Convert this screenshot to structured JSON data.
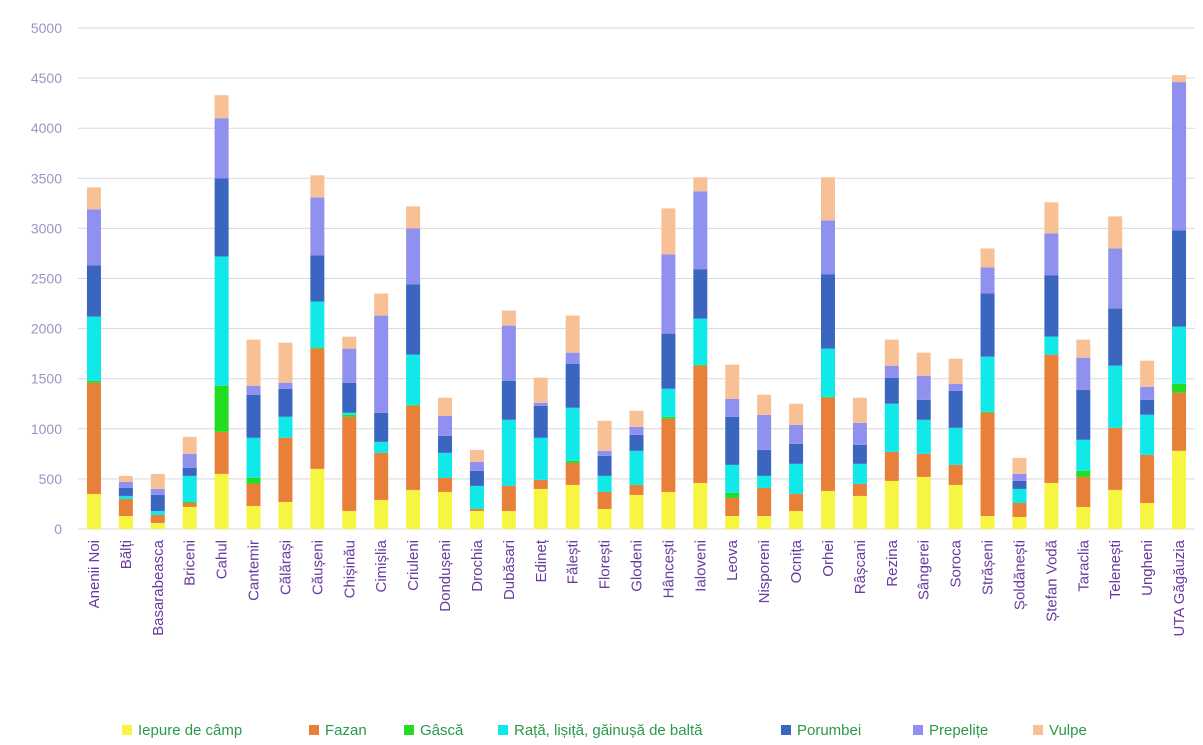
{
  "chart_data": {
    "type": "bar",
    "stacked": true,
    "ylim": [
      0,
      5000
    ],
    "yticks": [
      0,
      500,
      1000,
      1500,
      2000,
      2500,
      3000,
      3500,
      4000,
      4500,
      5000
    ],
    "grid": true,
    "legend_position": "bottom",
    "categories": [
      "Anenii Noi",
      "Bălți",
      "Basarabeasca",
      "Briceni",
      "Cahul",
      "Cantemir",
      "Călărași",
      "Căușeni",
      "Chișinău",
      "Cimișlia",
      "Criuleni",
      "Dondușeni",
      "Drochia",
      "Dubăsari",
      "Edineț",
      "Fălești",
      "Florești",
      "Glodeni",
      "Hâncești",
      "Ialoveni",
      "Leova",
      "Nisporeni",
      "Ocnița",
      "Orhei",
      "Râșcani",
      "Rezina",
      "Sângerei",
      "Soroca",
      "Strășeni",
      "Șoldănești",
      "Ștefan Vodă",
      "Taraclia",
      "Telenești",
      "Ungheni",
      "UTA Găgăuzia"
    ],
    "series": [
      {
        "name": "Iepure de câmp",
        "color": "#f5f542",
        "values": [
          350,
          130,
          60,
          220,
          550,
          230,
          270,
          600,
          180,
          290,
          390,
          370,
          180,
          180,
          400,
          440,
          200,
          340,
          370,
          460,
          130,
          130,
          180,
          380,
          330,
          480,
          520,
          440,
          130,
          120,
          460,
          220,
          390,
          260,
          780
        ]
      },
      {
        "name": "Fazan",
        "color": "#e8803a",
        "values": [
          1110,
          170,
          80,
          40,
          420,
          220,
          640,
          1200,
          940,
          470,
          840,
          140,
          20,
          250,
          90,
          220,
          170,
          100,
          730,
          1170,
          180,
          280,
          170,
          930,
          120,
          290,
          230,
          200,
          1030,
          140,
          1280,
          300,
          620,
          480,
          580
        ]
      },
      {
        "name": "Gâscă",
        "color": "#22dd22",
        "values": [
          20,
          0,
          0,
          10,
          460,
          60,
          0,
          10,
          20,
          0,
          10,
          0,
          0,
          0,
          0,
          20,
          0,
          0,
          20,
          10,
          50,
          0,
          0,
          10,
          0,
          0,
          0,
          0,
          10,
          0,
          0,
          60,
          0,
          0,
          90
        ]
      },
      {
        "name": "Rață, lișiță, găinușă de baltă",
        "color": "#11e8e8",
        "values": [
          640,
          30,
          40,
          260,
          1290,
          400,
          210,
          460,
          20,
          110,
          500,
          250,
          230,
          660,
          420,
          530,
          160,
          340,
          280,
          460,
          280,
          120,
          300,
          480,
          200,
          480,
          340,
          370,
          550,
          140,
          180,
          310,
          620,
          400,
          570
        ]
      },
      {
        "name": "Porumbei",
        "color": "#3a66c0",
        "values": [
          510,
          80,
          160,
          80,
          780,
          430,
          280,
          460,
          300,
          290,
          700,
          170,
          150,
          390,
          320,
          440,
          200,
          160,
          550,
          490,
          480,
          260,
          200,
          740,
          190,
          260,
          200,
          370,
          630,
          80,
          610,
          500,
          570,
          150,
          960
        ]
      },
      {
        "name": "Prepelițe",
        "color": "#9090ee",
        "values": [
          560,
          60,
          60,
          140,
          600,
          90,
          60,
          580,
          340,
          970,
          560,
          200,
          90,
          550,
          30,
          110,
          50,
          80,
          790,
          780,
          180,
          350,
          190,
          540,
          220,
          120,
          240,
          70,
          260,
          70,
          420,
          320,
          600,
          130,
          1480
        ]
      },
      {
        "name": "Vulpe",
        "color": "#f8c195",
        "values": [
          220,
          60,
          150,
          170,
          230,
          460,
          400,
          220,
          120,
          220,
          220,
          180,
          120,
          150,
          250,
          370,
          300,
          160,
          460,
          140,
          340,
          200,
          210,
          430,
          250,
          260,
          230,
          250,
          190,
          160,
          310,
          180,
          320,
          260,
          70
        ]
      }
    ]
  }
}
